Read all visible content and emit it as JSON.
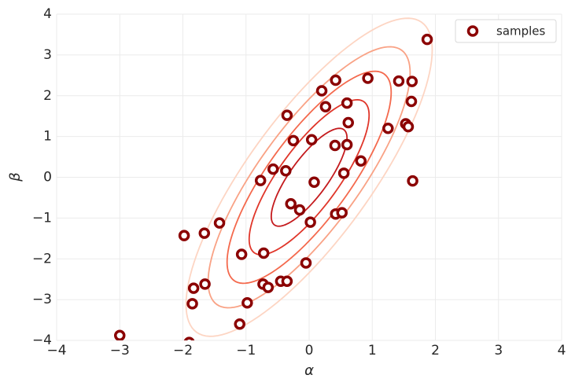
{
  "chart_data": {
    "type": "scatter",
    "x_label": "α",
    "y_label": "β",
    "xlim": [
      -4,
      4
    ],
    "ylim": [
      -4,
      4
    ],
    "xticks": [
      {
        "value": -4,
        "label": "−4"
      },
      {
        "value": -3,
        "label": "−3"
      },
      {
        "value": -2,
        "label": "−2"
      },
      {
        "value": -1,
        "label": "−1"
      },
      0,
      1,
      2,
      3,
      4
    ],
    "yticks": [
      {
        "value": -4,
        "label": "−4"
      },
      {
        "value": -3,
        "label": "−3"
      },
      {
        "value": -2,
        "label": "−2"
      },
      {
        "value": -1,
        "label": "−1"
      },
      0,
      1,
      2,
      3,
      4
    ],
    "grid": true,
    "legend": "upper right",
    "contours": {
      "mean": [
        0,
        0
      ],
      "sigma": [
        1,
        2
      ],
      "rho": 0.8,
      "levels": [
        0.6,
        0.95,
        1.3,
        1.6,
        1.95
      ],
      "colors": [
        "#c41a1d",
        "#e0362a",
        "#f4694d",
        "#f9a285",
        "#fdd5c3"
      ]
    },
    "series": [
      {
        "name": "samples",
        "color": "#8b0000",
        "x": [
          1.87,
          0.93,
          0.42,
          0.2,
          1.42,
          1.63,
          0.26,
          0.6,
          1.62,
          -0.35,
          0.62,
          1.53,
          1.57,
          1.25,
          -0.25,
          0.04,
          0.41,
          0.6,
          0.82,
          -0.57,
          -0.37,
          0.55,
          -0.77,
          0.08,
          1.64,
          -0.29,
          -0.15,
          0.42,
          0.52,
          0.02,
          -1.42,
          -1.66,
          -1.98,
          -1.07,
          -0.72,
          -0.05,
          -1.65,
          -1.83,
          -0.73,
          -0.65,
          -0.45,
          -0.35,
          -0.98,
          -1.85,
          -1.1,
          -3.0,
          -1.9
        ],
        "values": [
          3.38,
          2.43,
          2.38,
          2.12,
          2.36,
          2.35,
          1.73,
          1.82,
          1.86,
          1.52,
          1.34,
          1.31,
          1.24,
          1.2,
          0.9,
          0.92,
          0.78,
          0.8,
          0.4,
          0.2,
          0.16,
          0.1,
          -0.08,
          -0.12,
          -0.09,
          -0.65,
          -0.8,
          -0.9,
          -0.87,
          -1.1,
          -1.12,
          -1.37,
          -1.43,
          -1.89,
          -1.86,
          -2.1,
          -2.62,
          -2.72,
          -2.62,
          -2.7,
          -2.55,
          -2.55,
          -3.08,
          -3.1,
          -3.6,
          -3.88,
          -4.05
        ]
      }
    ]
  }
}
